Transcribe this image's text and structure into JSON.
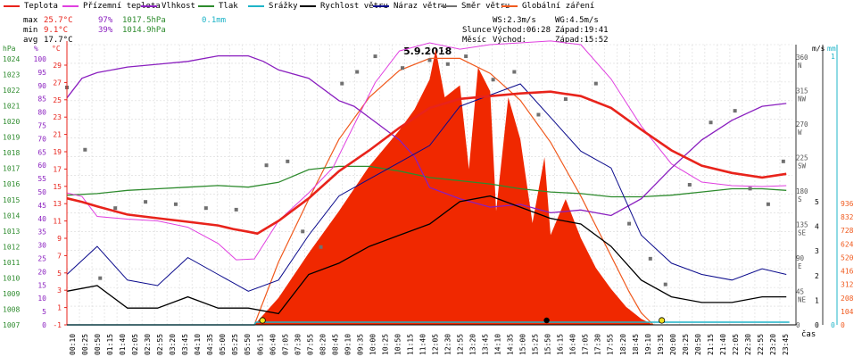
{
  "legend": [
    {
      "label": "Teplota",
      "color": "#e8231b"
    },
    {
      "label": "Přízemní teplota",
      "color": "#e040e0"
    },
    {
      "label": "Vlhkost",
      "color": "#8a1fbf"
    },
    {
      "label": "Tlak",
      "color": "#2e8b2e"
    },
    {
      "label": "Srážky",
      "color": "#1fb4c8"
    },
    {
      "label": "Rychlost větru",
      "color": "#000000"
    },
    {
      "label": "Náraz větru",
      "color": "#0a0a8c"
    },
    {
      "label": "Směr větru",
      "color": "#707070"
    },
    {
      "label": "Globální záření",
      "color": "#f05a1e"
    }
  ],
  "stats": {
    "max": {
      "label": "max",
      "temp": "25.7°C",
      "hum": "97%",
      "press": "1017.5hPa",
      "rain": "0.1mm"
    },
    "min": {
      "label": "min",
      "temp": "9.1°C",
      "hum": "39%",
      "press": "1014.9hPa"
    },
    "avg": {
      "label": "avg",
      "temp": "17.7°C"
    }
  },
  "wind": {
    "ws": "WS:2.3m/s",
    "wg": "WG:4.5m/s"
  },
  "sun": {
    "label": "Slunce",
    "rise": "Východ:06:28",
    "set": "Západ:19:41"
  },
  "moon": {
    "label": "Měsíc",
    "rise": "Východ:",
    "set": "Západ:15:52"
  },
  "date": "5.9.2018",
  "axes": {
    "hpa_title": "hPa",
    "pct_title": "%",
    "degc_title": "°C",
    "ms_title": "m/s",
    "mm_title": "mm",
    "hpa_ticks": [
      "1024",
      "1023",
      "1022",
      "1021",
      "1020",
      "1019",
      "1018",
      "1017",
      "1016",
      "1015",
      "1014",
      "1013",
      "1012",
      "1011",
      "1010",
      "1009",
      "1008",
      "1007"
    ],
    "pct_ticks": [
      "100",
      "95",
      "90",
      "85",
      "80",
      "75",
      "70",
      "65",
      "60",
      "55",
      "50",
      "45",
      "40",
      "35",
      "30",
      "25",
      "20",
      "15",
      "10",
      "5",
      "0"
    ],
    "degc_ticks": [
      "29",
      "27",
      "25",
      "23",
      "21",
      "19",
      "17",
      "15",
      "13",
      "11",
      "9",
      "7",
      "5",
      "3",
      "1",
      "-1"
    ],
    "dir_ticks": [
      {
        "deg": "360",
        "lbl": "N"
      },
      {
        "deg": "315",
        "lbl": "NW"
      },
      {
        "deg": "270",
        "lbl": "W"
      },
      {
        "deg": "225",
        "lbl": "SW"
      },
      {
        "deg": "180",
        "lbl": "S"
      },
      {
        "deg": "135",
        "lbl": "SE"
      },
      {
        "deg": "90",
        "lbl": "E"
      },
      {
        "deg": "45",
        "lbl": "NE"
      },
      {
        "deg": "0",
        "lbl": ""
      }
    ],
    "ms_ticks": [
      "5",
      "4",
      "3",
      "2",
      "1",
      "0"
    ],
    "mm_ticks": [
      "1",
      "0"
    ],
    "wm2_ticks": [
      "936",
      "832",
      "728",
      "624",
      "520",
      "416",
      "312",
      "208",
      "104",
      "0"
    ],
    "x_title": "čas",
    "time_ticks": [
      "00:10",
      "00:25",
      "00:50",
      "01:15",
      "01:40",
      "02:05",
      "02:30",
      "02:55",
      "03:20",
      "03:45",
      "04:10",
      "04:35",
      "05:00",
      "05:25",
      "05:50",
      "06:15",
      "06:40",
      "07:05",
      "07:30",
      "07:55",
      "08:20",
      "08:45",
      "09:10",
      "09:35",
      "10:00",
      "10:25",
      "10:50",
      "11:15",
      "11:40",
      "12:05",
      "12:30",
      "12:55",
      "13:20",
      "13:45",
      "14:10",
      "14:35",
      "15:00",
      "15:25",
      "15:50",
      "16:15",
      "16:40",
      "17:05",
      "17:30",
      "17:55",
      "18:20",
      "18:45",
      "19:10",
      "19:35",
      "20:00",
      "20:25",
      "20:50",
      "21:15",
      "21:40",
      "22:05",
      "22:30",
      "22:55",
      "23:20",
      "23:45"
    ]
  },
  "colors": {
    "grid": "#d8d8d8",
    "rain": "#1fb4c8",
    "radiation": "#f02800",
    "radiation_max": "#f05a1e"
  },
  "chart_data": {
    "type": "line",
    "x_unit": "hour",
    "series": [
      {
        "name": "Teplota",
        "unit": "°C",
        "points": [
          [
            0,
            13
          ],
          [
            0.5,
            12.6
          ],
          [
            1,
            12.1
          ],
          [
            2,
            11.2
          ],
          [
            3,
            10.8
          ],
          [
            4,
            10.4
          ],
          [
            5,
            10
          ],
          [
            5.5,
            9.6
          ],
          [
            6,
            9.3
          ],
          [
            6.3,
            9.1
          ],
          [
            7,
            10.5
          ],
          [
            8,
            13
          ],
          [
            9,
            16
          ],
          [
            10,
            18.3
          ],
          [
            11,
            20.8
          ],
          [
            12,
            23
          ],
          [
            13,
            24
          ],
          [
            14,
            24.3
          ],
          [
            15,
            24.6
          ],
          [
            16,
            24.8
          ],
          [
            17,
            24.3
          ],
          [
            18,
            23
          ],
          [
            19,
            20.6
          ],
          [
            20,
            18.3
          ],
          [
            21,
            16.6
          ],
          [
            22,
            15.8
          ],
          [
            23,
            15.3
          ],
          [
            23.8,
            15.7
          ]
        ]
      },
      {
        "name": "Přízemní teplota",
        "unit": "°C",
        "points": [
          [
            0,
            13.6
          ],
          [
            0.5,
            13.2
          ],
          [
            1,
            11
          ],
          [
            2,
            10.7
          ],
          [
            3,
            10.5
          ],
          [
            4,
            9.8
          ],
          [
            5,
            8
          ],
          [
            5.6,
            6.2
          ],
          [
            6.2,
            6.3
          ],
          [
            7,
            10.5
          ],
          [
            8,
            13.6
          ],
          [
            8.8,
            16.4
          ],
          [
            9.6,
            21.8
          ],
          [
            10.2,
            25.8
          ],
          [
            11,
            29.3
          ],
          [
            12,
            30.2
          ],
          [
            13,
            29.5
          ],
          [
            14,
            30
          ],
          [
            15,
            30.2
          ],
          [
            16,
            30.4
          ],
          [
            17,
            30
          ],
          [
            18,
            26.2
          ],
          [
            19,
            21
          ],
          [
            20,
            16.8
          ],
          [
            21,
            14.8
          ],
          [
            22,
            14.4
          ],
          [
            23,
            14.3
          ],
          [
            23.8,
            14.4
          ]
        ]
      },
      {
        "name": "Vlhkost",
        "unit": "%",
        "points": [
          [
            0,
            81
          ],
          [
            0.5,
            88
          ],
          [
            1,
            90
          ],
          [
            2,
            92
          ],
          [
            3,
            93
          ],
          [
            4,
            94
          ],
          [
            5,
            96
          ],
          [
            6,
            96
          ],
          [
            6.5,
            94
          ],
          [
            7,
            91
          ],
          [
            8,
            88
          ],
          [
            9,
            80
          ],
          [
            9.5,
            78
          ],
          [
            10,
            74
          ],
          [
            11,
            66
          ],
          [
            11.5,
            60
          ],
          [
            12,
            49
          ],
          [
            13,
            45
          ],
          [
            14,
            42
          ],
          [
            15,
            43
          ],
          [
            16,
            40
          ],
          [
            17,
            41
          ],
          [
            18,
            39
          ],
          [
            19,
            45
          ],
          [
            20,
            56
          ],
          [
            21,
            66
          ],
          [
            22,
            73
          ],
          [
            23,
            78
          ],
          [
            23.8,
            79
          ]
        ]
      },
      {
        "name": "Tlak",
        "unit": "hPa",
        "points": [
          [
            0,
            1015.1
          ],
          [
            1,
            1015.2
          ],
          [
            2,
            1015.4
          ],
          [
            3,
            1015.5
          ],
          [
            4,
            1015.6
          ],
          [
            5,
            1015.7
          ],
          [
            6,
            1015.6
          ],
          [
            7,
            1015.9
          ],
          [
            8,
            1016.7
          ],
          [
            9,
            1016.9
          ],
          [
            10,
            1016.9
          ],
          [
            11,
            1016.6
          ],
          [
            12,
            1016.2
          ],
          [
            13,
            1016
          ],
          [
            14,
            1015.8
          ],
          [
            15,
            1015.5
          ],
          [
            16,
            1015.3
          ],
          [
            17,
            1015.2
          ],
          [
            18,
            1015
          ],
          [
            19,
            1015
          ],
          [
            20,
            1015.1
          ],
          [
            21,
            1015.3
          ],
          [
            22,
            1015.5
          ],
          [
            23,
            1015.5
          ],
          [
            23.8,
            1015.4
          ]
        ]
      },
      {
        "name": "Srážky",
        "unit": "mm",
        "points": [
          [
            0,
            0
          ],
          [
            6.2,
            0
          ],
          [
            6.25,
            0.1
          ],
          [
            23.9,
            0.1
          ]
        ]
      },
      {
        "name": "Globální záření (max)",
        "unit": "W/m2",
        "points": [
          [
            6.2,
            0
          ],
          [
            7,
            210
          ],
          [
            8,
            420
          ],
          [
            9,
            620
          ],
          [
            10,
            760
          ],
          [
            11,
            850
          ],
          [
            12,
            890
          ],
          [
            13,
            890
          ],
          [
            14,
            840
          ],
          [
            15,
            750
          ],
          [
            16,
            610
          ],
          [
            17,
            430
          ],
          [
            18,
            230
          ],
          [
            18.6,
            110
          ],
          [
            19,
            40
          ],
          [
            19.4,
            0
          ]
        ]
      }
    ],
    "radiation_envelope": [
      [
        6.2,
        0
      ],
      [
        7,
        90
      ],
      [
        8,
        240
      ],
      [
        9,
        380
      ],
      [
        10,
        530
      ],
      [
        10.5,
        590
      ],
      [
        11,
        650
      ],
      [
        11.5,
        720
      ],
      [
        12,
        820
      ],
      [
        12.2,
        920
      ],
      [
        12.5,
        760
      ],
      [
        13,
        800
      ],
      [
        13.3,
        520
      ],
      [
        13.6,
        860
      ],
      [
        14,
        780
      ],
      [
        14.2,
        380
      ],
      [
        14.6,
        760
      ],
      [
        15,
        620
      ],
      [
        15.4,
        340
      ],
      [
        15.8,
        560
      ],
      [
        16,
        300
      ],
      [
        16.5,
        420
      ],
      [
        17,
        290
      ],
      [
        17.5,
        190
      ],
      [
        18,
        120
      ],
      [
        18.5,
        60
      ],
      [
        19,
        20
      ],
      [
        19.4,
        0
      ]
    ],
    "wind_speed_ms": [
      [
        0,
        0.6
      ],
      [
        1,
        0.7
      ],
      [
        2,
        0.3
      ],
      [
        3,
        0.3
      ],
      [
        4,
        0.5
      ],
      [
        5,
        0.3
      ],
      [
        6,
        0.3
      ],
      [
        7,
        0.2
      ],
      [
        8,
        0.9
      ],
      [
        9,
        1.1
      ],
      [
        10,
        1.4
      ],
      [
        11,
        1.6
      ],
      [
        12,
        1.8
      ],
      [
        13,
        2.2
      ],
      [
        14,
        2.3
      ],
      [
        15,
        2.1
      ],
      [
        16,
        1.9
      ],
      [
        17,
        1.8
      ],
      [
        18,
        1.4
      ],
      [
        19,
        0.8
      ],
      [
        20,
        0.5
      ],
      [
        21,
        0.4
      ],
      [
        22,
        0.4
      ],
      [
        23,
        0.5
      ],
      [
        23.8,
        0.5
      ]
    ],
    "wind_gust_ms": [
      [
        0,
        0.9
      ],
      [
        1,
        1.4
      ],
      [
        2,
        0.8
      ],
      [
        3,
        0.7
      ],
      [
        4,
        1.2
      ],
      [
        5,
        0.9
      ],
      [
        6,
        0.6
      ],
      [
        7,
        0.8
      ],
      [
        8,
        1.6
      ],
      [
        9,
        2.3
      ],
      [
        10,
        2.6
      ],
      [
        11,
        2.9
      ],
      [
        12,
        3.2
      ],
      [
        13,
        3.9
      ],
      [
        14,
        4.1
      ],
      [
        15,
        4.3
      ],
      [
        16,
        3.7
      ],
      [
        17,
        3.1
      ],
      [
        18,
        2.8
      ],
      [
        19,
        1.6
      ],
      [
        20,
        1.1
      ],
      [
        21,
        0.9
      ],
      [
        22,
        0.8
      ],
      [
        23,
        1
      ],
      [
        23.8,
        0.9
      ]
    ],
    "wind_direction_deg": [
      [
        0,
        305
      ],
      [
        0.6,
        225
      ],
      [
        1.1,
        60
      ],
      [
        1.6,
        150
      ],
      [
        2.6,
        158
      ],
      [
        3.6,
        155
      ],
      [
        4.6,
        150
      ],
      [
        5.6,
        148
      ],
      [
        6.6,
        205
      ],
      [
        7.3,
        210
      ],
      [
        7.8,
        120
      ],
      [
        8.4,
        100
      ],
      [
        9.1,
        310
      ],
      [
        9.6,
        325
      ],
      [
        10.2,
        345
      ],
      [
        11.1,
        330
      ],
      [
        12,
        340
      ],
      [
        12.6,
        335
      ],
      [
        13.2,
        345
      ],
      [
        14.1,
        315
      ],
      [
        14.8,
        325
      ],
      [
        15.6,
        270
      ],
      [
        16.5,
        290
      ],
      [
        17.5,
        310
      ],
      [
        18.6,
        130
      ],
      [
        19.3,
        85
      ],
      [
        19.8,
        52
      ],
      [
        20.6,
        180
      ],
      [
        21.3,
        260
      ],
      [
        22.1,
        275
      ],
      [
        22.6,
        175
      ],
      [
        23.2,
        155
      ],
      [
        23.7,
        210
      ]
    ],
    "ylim_temp": [
      -1,
      30
    ],
    "ylim_hum": [
      0,
      100
    ],
    "ylim_press": [
      1007,
      1024.5
    ],
    "ylim_dir": [
      0,
      360
    ],
    "ylim_wind": [
      0,
      5
    ],
    "ylim_rad": [
      0,
      936
    ],
    "xlim": [
      0,
      24
    ]
  }
}
